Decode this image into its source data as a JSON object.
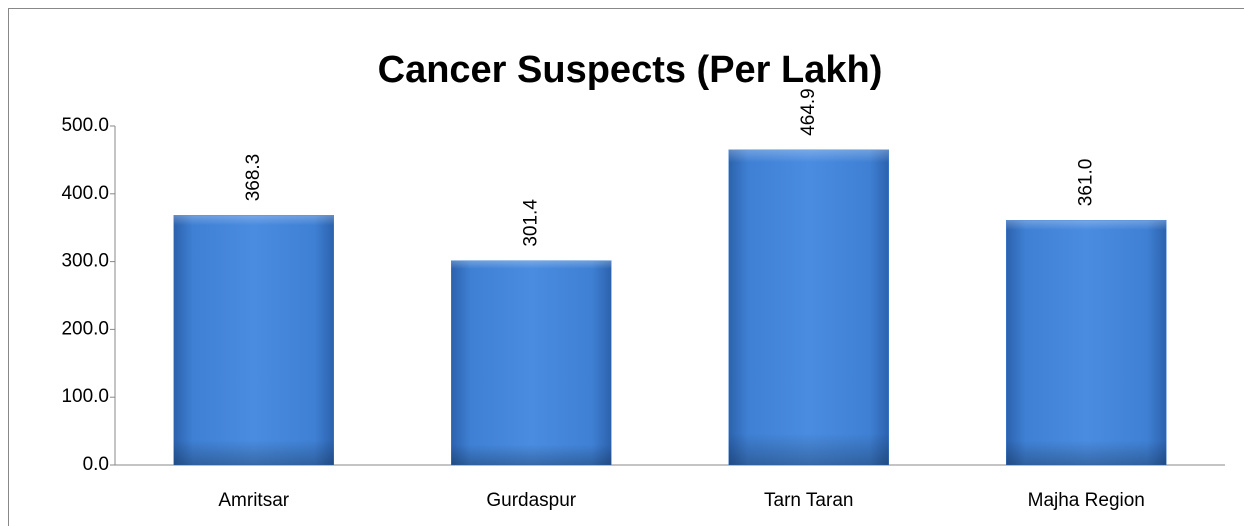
{
  "chart_data": {
    "type": "bar",
    "title": "Cancer Suspects (Per Lakh)",
    "categories": [
      "Amritsar",
      "Gurdaspur",
      "Tarn Taran",
      "Majha Region"
    ],
    "values": [
      368.3,
      301.4,
      464.9,
      361.0
    ],
    "value_labels": [
      "368.3",
      "301.4",
      "464.9",
      "361.0"
    ],
    "color": "#3f80d4",
    "ylim": [
      0,
      500
    ],
    "yticks": [
      {
        "value": 0,
        "label": "0.0"
      },
      {
        "value": 100,
        "label": "100.0"
      },
      {
        "value": 200,
        "label": "200.0"
      },
      {
        "value": 300,
        "label": "300.0"
      },
      {
        "value": 400,
        "label": "400.0"
      },
      {
        "value": 500,
        "label": "500.0"
      }
    ],
    "grid": false
  }
}
